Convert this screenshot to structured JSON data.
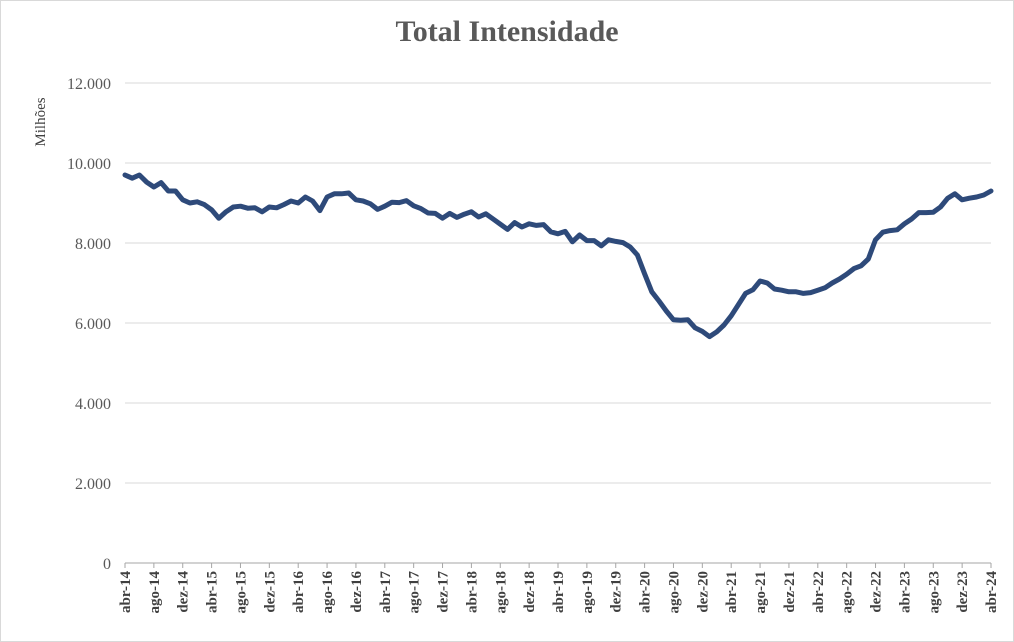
{
  "chart_data": {
    "type": "line",
    "title": "Total Intensidade",
    "ylabel": "Milhões",
    "xlabel": "",
    "ylim": [
      0,
      12000
    ],
    "yticks": [
      "0",
      "2.000",
      "4.000",
      "6.000",
      "8.000",
      "10.000",
      "12.000"
    ],
    "grid": true,
    "legend": "none",
    "colors": {
      "line": "#2E4A7A",
      "grid": "#d9d9d9",
      "axis": "#a6a6a6"
    },
    "x_labels": [
      "abr-14",
      "ago-14",
      "dez-14",
      "abr-15",
      "ago-15",
      "dez-15",
      "abr-16",
      "ago-16",
      "dez-16",
      "abr-17",
      "ago-17",
      "dez-17",
      "abr-18",
      "ago-18",
      "dez-18",
      "abr-19",
      "ago-19",
      "dez-19",
      "abr-20",
      "ago-20",
      "dez-20",
      "abr-21",
      "ago-21",
      "dez-21",
      "abr-22",
      "ago-22",
      "dez-22",
      "abr-23",
      "ago-23",
      "dez-23",
      "abr-24"
    ],
    "x": [
      "abr-14",
      "mai-14",
      "jun-14",
      "jul-14",
      "ago-14",
      "set-14",
      "out-14",
      "nov-14",
      "dez-14",
      "jan-15",
      "fev-15",
      "mar-15",
      "abr-15",
      "mai-15",
      "jun-15",
      "jul-15",
      "ago-15",
      "set-15",
      "out-15",
      "nov-15",
      "dez-15",
      "jan-16",
      "fev-16",
      "mar-16",
      "abr-16",
      "mai-16",
      "jun-16",
      "jul-16",
      "ago-16",
      "set-16",
      "out-16",
      "nov-16",
      "dez-16",
      "jan-17",
      "fev-17",
      "mar-17",
      "abr-17",
      "mai-17",
      "jun-17",
      "jul-17",
      "ago-17",
      "set-17",
      "out-17",
      "nov-17",
      "dez-17",
      "jan-18",
      "fev-18",
      "mar-18",
      "abr-18",
      "mai-18",
      "jun-18",
      "jul-18",
      "ago-18",
      "set-18",
      "out-18",
      "nov-18",
      "dez-18",
      "jan-19",
      "fev-19",
      "mar-19",
      "abr-19",
      "mai-19",
      "jun-19",
      "jul-19",
      "ago-19",
      "set-19",
      "out-19",
      "nov-19",
      "dez-19",
      "jan-20",
      "fev-20",
      "mar-20",
      "abr-20",
      "mai-20",
      "jun-20",
      "jul-20",
      "ago-20",
      "set-20",
      "out-20",
      "nov-20",
      "dez-20",
      "jan-21",
      "fev-21",
      "mar-21",
      "abr-21",
      "mai-21",
      "jun-21",
      "jul-21",
      "ago-21",
      "set-21",
      "out-21",
      "nov-21",
      "dez-21",
      "jan-22",
      "fev-22",
      "mar-22",
      "abr-22",
      "mai-22",
      "jun-22",
      "jul-22",
      "ago-22",
      "set-22",
      "out-22",
      "nov-22",
      "dez-22",
      "jan-23",
      "fev-23",
      "mar-23",
      "abr-23",
      "mai-23",
      "jun-23",
      "jul-23",
      "ago-23",
      "set-23",
      "out-23",
      "nov-23",
      "dez-23",
      "jan-24",
      "fev-24",
      "mar-24",
      "abr-24"
    ],
    "series": [
      {
        "values": [
          9700,
          9620,
          9700,
          9520,
          9400,
          9510,
          9300,
          9300,
          9080,
          9000,
          9030,
          8960,
          8830,
          8620,
          8780,
          8900,
          8920,
          8870,
          8880,
          8780,
          8900,
          8880,
          8960,
          9050,
          9000,
          9150,
          9050,
          8810,
          9150,
          9230,
          9230,
          9250,
          9080,
          9050,
          8980,
          8840,
          8920,
          9020,
          9010,
          9060,
          8930,
          8860,
          8750,
          8740,
          8620,
          8740,
          8640,
          8720,
          8780,
          8650,
          8730,
          8600,
          8470,
          8340,
          8510,
          8400,
          8480,
          8440,
          8460,
          8280,
          8230,
          8290,
          8030,
          8200,
          8060,
          8060,
          7930,
          8080,
          8040,
          8010,
          7900,
          7700,
          7230,
          6780,
          6550,
          6300,
          6080,
          6070,
          6080,
          5880,
          5790,
          5660,
          5780,
          5950,
          6180,
          6460,
          6740,
          6830,
          7050,
          7000,
          6850,
          6820,
          6780,
          6780,
          6740,
          6760,
          6820,
          6880,
          7000,
          7100,
          7220,
          7360,
          7430,
          7600,
          8080,
          8270,
          8310,
          8330,
          8480,
          8600,
          8760,
          8760,
          8770,
          8900,
          9120,
          9230,
          9080,
          9120,
          9150,
          9200,
          9300
        ]
      }
    ]
  }
}
